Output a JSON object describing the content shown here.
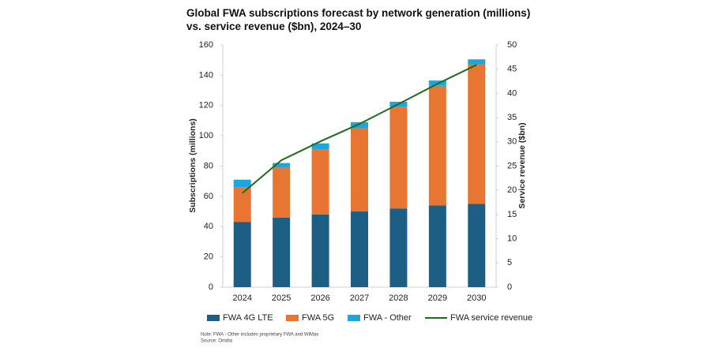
{
  "chart_data": {
    "type": "bar",
    "title": "Global FWA subscriptions forecast by network generation (millions) vs. service revenue ($bn), 2024–30",
    "categories": [
      "2024",
      "2025",
      "2026",
      "2027",
      "2028",
      "2029",
      "2030"
    ],
    "series": [
      {
        "name": "FWA 4G LTE",
        "color": "#1c5e84",
        "values": [
          43,
          46,
          48,
          50,
          52,
          54,
          55
        ]
      },
      {
        "name": "FWA 5G",
        "color": "#e97532",
        "values": [
          23,
          33,
          43,
          55,
          67,
          79,
          92
        ]
      },
      {
        "name": "FWA - Other",
        "color": "#1ea5de",
        "values": [
          5,
          3,
          4,
          4,
          3.5,
          3.5,
          3.5
        ]
      },
      {
        "name": "FWA service revenue",
        "color": "#1e6b1e",
        "type": "line",
        "axis": "y2",
        "values": [
          19.4,
          26.2,
          30.1,
          33.7,
          37.8,
          42.0,
          45.9
        ]
      }
    ],
    "stacked": true,
    "y_label": "Subscriptions (millions)",
    "y2_label": "Service revenue ($bn)",
    "ylim": [
      0,
      160
    ],
    "yticks": [
      0,
      20,
      40,
      60,
      80,
      100,
      120,
      140,
      160
    ],
    "y2lim": [
      0,
      50
    ],
    "y2ticks": [
      0,
      5,
      10,
      15,
      20,
      25,
      30,
      35,
      40,
      45,
      50
    ],
    "legend": "bottom",
    "notes": [
      "Note: FWA - Other includes proprietary FWA and WiMax",
      "Source: Omdia"
    ]
  }
}
